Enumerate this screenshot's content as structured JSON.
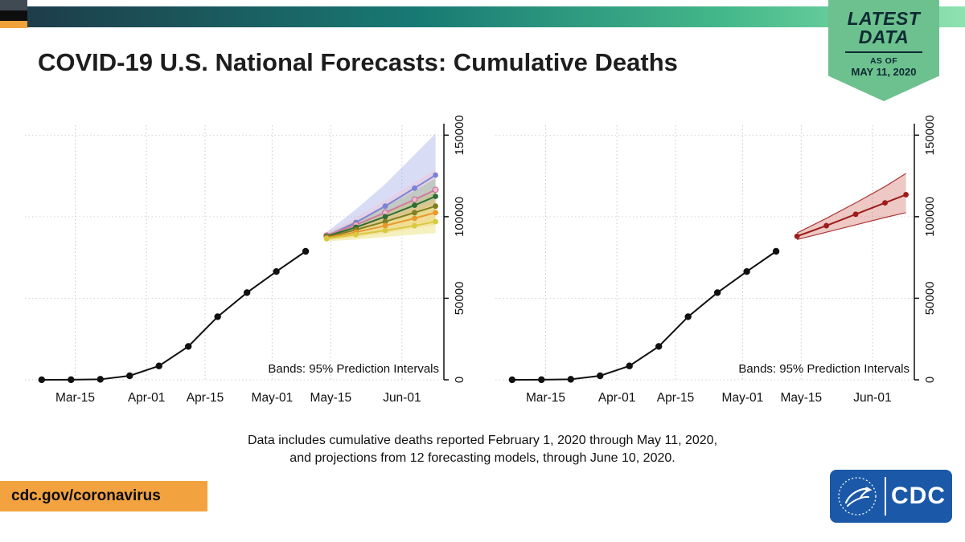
{
  "colors": {
    "top_bar_gradient": [
      "#1d3c49",
      "#187a74",
      "#45b98a",
      "#8fe2b0"
    ],
    "corner_stripes": [
      "#3f4a52",
      "#0e0e0e",
      "#f0a23a"
    ],
    "ribbon_green": "#6cc18f",
    "ribbon_text": "#0e2b33",
    "url_bar_orange": "#f2a340",
    "cdc_blue": "#1b59a8",
    "title_color": "#1d1d1d"
  },
  "header": {
    "title": "COVID-19 U.S. National Forecasts: Cumulative Deaths",
    "ribbon": {
      "latest": "LATEST",
      "data_word": "DATA",
      "as_of_label": "AS OF",
      "as_of_date": "MAY 11, 2020"
    }
  },
  "footer": {
    "caption_line1": "Data includes cumulative deaths reported February 1, 2020 through May 11, 2020,",
    "caption_line2": "and projections from 12 forecasting models, through June 10, 2020.",
    "url": "cdc.gov/coronavirus",
    "cdc_logo_text": "CDC"
  },
  "chart_data": [
    {
      "type": "line",
      "panel": "all-models",
      "note": "Bands: 95% Prediction Intervals",
      "x_unit": "days since 2020-03-01",
      "x_domain": [
        2,
        102
      ],
      "y_domain": [
        0,
        160000
      ],
      "x_ticks": [
        {
          "day": 14,
          "label": "Mar-15"
        },
        {
          "day": 31,
          "label": "Apr-01"
        },
        {
          "day": 45,
          "label": "Apr-15"
        },
        {
          "day": 61,
          "label": "May-01"
        },
        {
          "day": 75,
          "label": "May-15"
        },
        {
          "day": 92,
          "label": "Jun-01"
        }
      ],
      "y_ticks": [
        {
          "value": 0,
          "label": "0"
        },
        {
          "value": 50000,
          "label": "50000"
        },
        {
          "value": 100000,
          "label": "100000"
        },
        {
          "value": 150000,
          "label": "150000"
        }
      ],
      "observed": {
        "name": "reported-cumulative-deaths",
        "color": "#111111",
        "points": [
          [
            6,
            19
          ],
          [
            13,
            57
          ],
          [
            20,
            306
          ],
          [
            27,
            2467
          ],
          [
            34,
            8503
          ],
          [
            41,
            20463
          ],
          [
            48,
            38664
          ],
          [
            55,
            53449
          ],
          [
            62,
            66369
          ],
          [
            69,
            78771
          ]
        ]
      },
      "forecasts": [
        {
          "name": "forecast-model-1",
          "color": "#7b84d4",
          "band": "#9aa3e6",
          "band_opacity": 0.38,
          "x": [
            74,
            81,
            88,
            95,
            100
          ],
          "values": [
            88000,
            96500,
            106500,
            117500,
            125500
          ],
          "lower": [
            85500,
            91000,
            97000,
            103500,
            108000
          ],
          "upper": [
            90500,
            104500,
            120000,
            138000,
            151000
          ]
        },
        {
          "name": "forecast-model-2",
          "color": "#d4789e",
          "band": "#f2c3d6",
          "band_opacity": 0.45,
          "dot": "#f3b7ce",
          "dot_stroke": "#b56b90",
          "x": [
            74,
            81,
            88,
            95,
            100
          ],
          "values": [
            88500,
            95000,
            102500,
            110500,
            116500
          ],
          "lower": [
            86500,
            91500,
            96500,
            101500,
            105000
          ],
          "upper": [
            90500,
            99500,
            110000,
            121000,
            129000
          ]
        },
        {
          "name": "forecast-model-3",
          "color": "#2f6d31",
          "band": "#8fbe90",
          "band_opacity": 0.4,
          "x": [
            74,
            81,
            88,
            95,
            100
          ],
          "values": [
            88000,
            93500,
            100000,
            107000,
            112500
          ],
          "lower": [
            86500,
            90500,
            95000,
            99500,
            102500
          ],
          "upper": [
            89500,
            97500,
            106000,
            116000,
            123500
          ]
        },
        {
          "name": "forecast-model-4",
          "color": "#7f7f23",
          "band": "#c9c96e",
          "band_opacity": 0.4,
          "x": [
            74,
            81,
            88,
            95,
            100
          ],
          "values": [
            87500,
            92000,
            97000,
            102500,
            106500
          ],
          "lower": [
            86000,
            89000,
            92000,
            95500,
            98000
          ],
          "upper": [
            89000,
            95500,
            102500,
            110000,
            115500
          ]
        },
        {
          "name": "forecast-model-5",
          "color": "#e8992e",
          "band": "#f6c67e",
          "band_opacity": 0.5,
          "x": [
            74,
            81,
            88,
            95,
            100
          ],
          "values": [
            87000,
            90500,
            94500,
            99000,
            102500
          ],
          "lower": [
            85500,
            87500,
            90000,
            93000,
            95000
          ],
          "upper": [
            88500,
            94000,
            99500,
            106000,
            110500
          ]
        },
        {
          "name": "forecast-model-6",
          "color": "#d9c93f",
          "band": "#efe48a",
          "band_opacity": 0.55,
          "x": [
            74,
            81,
            88,
            95,
            100
          ],
          "values": [
            86500,
            89000,
            91500,
            94500,
            97000
          ],
          "lower": [
            85000,
            86000,
            87500,
            89000,
            90000
          ],
          "upper": [
            88000,
            92500,
            97500,
            103000,
            107500
          ]
        }
      ]
    },
    {
      "type": "line",
      "panel": "ensemble",
      "note": "Bands: 95% Prediction Intervals",
      "x_unit": "days since 2020-03-01",
      "x_domain": [
        2,
        102
      ],
      "y_domain": [
        0,
        160000
      ],
      "x_ticks": [
        {
          "day": 14,
          "label": "Mar-15"
        },
        {
          "day": 31,
          "label": "Apr-01"
        },
        {
          "day": 45,
          "label": "Apr-15"
        },
        {
          "day": 61,
          "label": "May-01"
        },
        {
          "day": 75,
          "label": "May-15"
        },
        {
          "day": 92,
          "label": "Jun-01"
        }
      ],
      "y_ticks": [
        {
          "value": 0,
          "label": "0"
        },
        {
          "value": 50000,
          "label": "50000"
        },
        {
          "value": 100000,
          "label": "100000"
        },
        {
          "value": 150000,
          "label": "150000"
        }
      ],
      "observed": {
        "name": "reported-cumulative-deaths",
        "color": "#111111",
        "points": [
          [
            6,
            19
          ],
          [
            13,
            57
          ],
          [
            20,
            306
          ],
          [
            27,
            2467
          ],
          [
            34,
            8503
          ],
          [
            41,
            20463
          ],
          [
            48,
            38664
          ],
          [
            55,
            53449
          ],
          [
            62,
            66369
          ],
          [
            69,
            78771
          ]
        ]
      },
      "forecasts": [
        {
          "name": "ensemble-forecast",
          "color": "#9e1b1b",
          "band": "#c24a3a",
          "band_opacity": 0.3,
          "bounds": true,
          "x": [
            74,
            81,
            88,
            95,
            100
          ],
          "values": [
            88000,
            94500,
            101500,
            108500,
            113500
          ],
          "lower": [
            86000,
            90500,
            95000,
            99500,
            102500
          ],
          "upper": [
            90000,
            99000,
            108500,
            118500,
            126500
          ]
        }
      ]
    }
  ]
}
